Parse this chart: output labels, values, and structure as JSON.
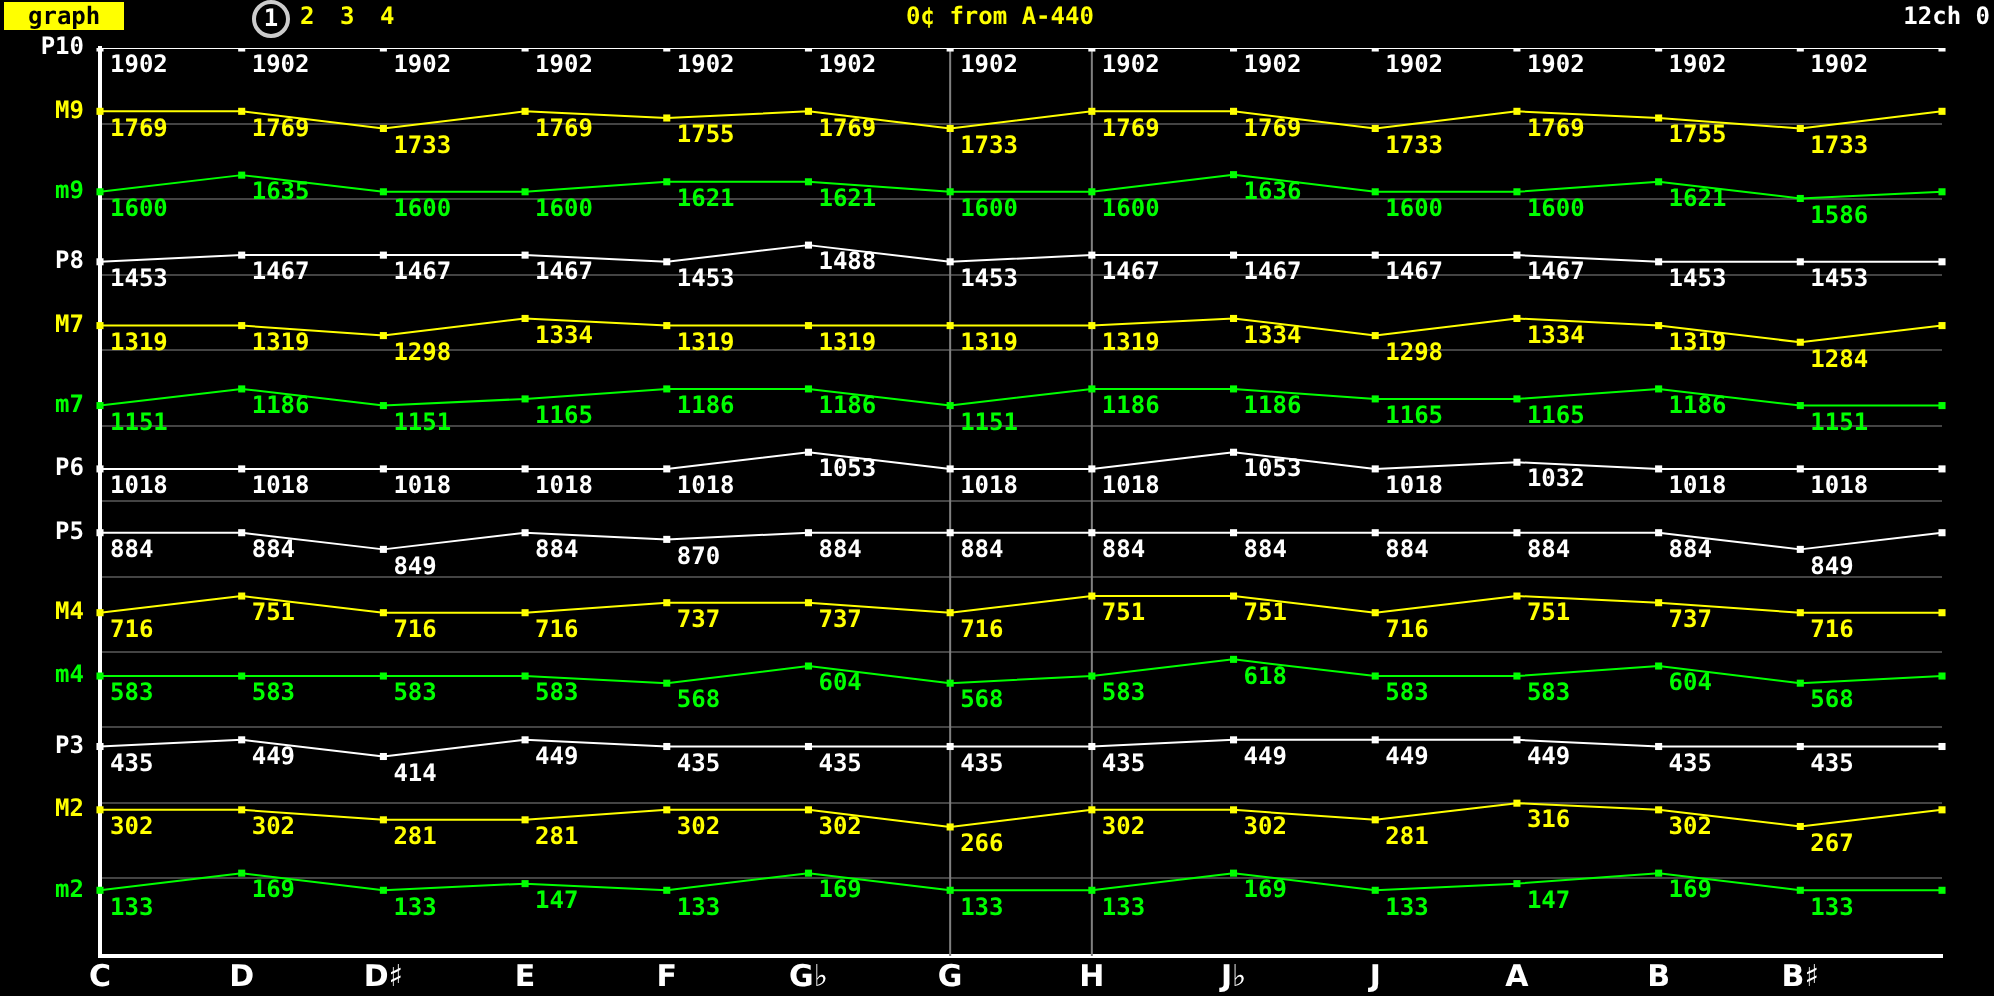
{
  "chart_data": {
    "type": "line",
    "title": "0¢ from A-440",
    "annotations": [
      "graph",
      "1",
      "2",
      "3",
      "4",
      "12ch 0"
    ],
    "categories": [
      "C",
      "D",
      "D♯",
      "E",
      "F",
      "G♭",
      "G",
      "H",
      "J♭",
      "J",
      "A",
      "B",
      "B♯",
      null
    ],
    "series": [
      {
        "name": "P10",
        "color": "#ffffff",
        "values": [
          1902,
          1902,
          1902,
          1902,
          1902,
          1902,
          1902,
          1902,
          1902,
          1902,
          1902,
          1902,
          1902,
          1902
        ],
        "value_labels": [
          "1902",
          "1902",
          "1902",
          "1902",
          "1902",
          "1902",
          "1902",
          "1902",
          "1902",
          "1902",
          "1902",
          "1902",
          "1902",
          null
        ]
      },
      {
        "name": "M9",
        "color": "#ffff00",
        "values": [
          1769,
          1769,
          1733,
          1769,
          1755,
          1769,
          1733,
          1769,
          1769,
          1733,
          1769,
          1755,
          1733,
          1769
        ],
        "value_labels": [
          "1769",
          "1769",
          "1733",
          "1769",
          "1755",
          "1769",
          "1733",
          "1769",
          "1769",
          "1733",
          "1769",
          "1755",
          "1733",
          null
        ]
      },
      {
        "name": "m9",
        "color": "#00ff00",
        "values": [
          1600,
          1635,
          1600,
          1600,
          1621,
          1621,
          1600,
          1600,
          1636,
          1600,
          1600,
          1621,
          1586,
          1600
        ],
        "value_labels": [
          "1600",
          "1635",
          "1600",
          "1600",
          "1621",
          "1621",
          "1600",
          "1600",
          "1636",
          "1600",
          "1600",
          "1621",
          "1586",
          null
        ]
      },
      {
        "name": "P8",
        "color": "#ffffff",
        "values": [
          1453,
          1467,
          1467,
          1467,
          1453,
          1488,
          1453,
          1467,
          1467,
          1467,
          1467,
          1453,
          1453,
          1453
        ],
        "value_labels": [
          "1453",
          "1467",
          "1467",
          "1467",
          "1453",
          "1488",
          "1453",
          "1467",
          "1467",
          "1467",
          "1467",
          "1453",
          "1453",
          null
        ]
      },
      {
        "name": "M7",
        "color": "#ffff00",
        "values": [
          1319,
          1319,
          1298,
          1334,
          1319,
          1319,
          1319,
          1319,
          1334,
          1298,
          1334,
          1319,
          1284,
          1319
        ],
        "value_labels": [
          "1319",
          "1319",
          "1298",
          "1334",
          "1319",
          "1319",
          "1319",
          "1319",
          "1334",
          "1298",
          "1334",
          "1319",
          "1284",
          null
        ]
      },
      {
        "name": "m7",
        "color": "#00ff00",
        "values": [
          1151,
          1186,
          1151,
          1165,
          1186,
          1186,
          1151,
          1186,
          1186,
          1165,
          1165,
          1186,
          1151,
          1151
        ],
        "value_labels": [
          "1151",
          "1186",
          "1151",
          "1165",
          "1186",
          "1186",
          "1151",
          "1186",
          "1186",
          "1165",
          "1165",
          "1186",
          "1151",
          null
        ]
      },
      {
        "name": "P6",
        "color": "#ffffff",
        "values": [
          1018,
          1018,
          1018,
          1018,
          1018,
          1053,
          1018,
          1018,
          1053,
          1018,
          1032,
          1018,
          1018,
          1018
        ],
        "value_labels": [
          "1018",
          "1018",
          "1018",
          "1018",
          "1018",
          "1053",
          "1018",
          "1018",
          "1053",
          "1018",
          "1032",
          "1018",
          "1018",
          null
        ]
      },
      {
        "name": "P5",
        "color": "#ffffff",
        "values": [
          884,
          884,
          849,
          884,
          870,
          884,
          884,
          884,
          884,
          884,
          884,
          884,
          849,
          884
        ],
        "value_labels": [
          "884",
          "884",
          "849",
          "884",
          "870",
          "884",
          "884",
          "884",
          "884",
          "884",
          "884",
          "884",
          "849",
          null
        ]
      },
      {
        "name": "M4",
        "color": "#ffff00",
        "values": [
          716,
          751,
          716,
          716,
          737,
          737,
          716,
          751,
          751,
          716,
          751,
          737,
          716,
          716
        ],
        "value_labels": [
          "716",
          "751",
          "716",
          "716",
          "737",
          "737",
          "716",
          "751",
          "751",
          "716",
          "751",
          "737",
          "716",
          null
        ]
      },
      {
        "name": "m4",
        "color": "#00ff00",
        "values": [
          583,
          583,
          583,
          583,
          568,
          604,
          568,
          583,
          618,
          583,
          583,
          604,
          568,
          583
        ],
        "value_labels": [
          "583",
          "583",
          "583",
          "583",
          "568",
          "604",
          "568",
          "583",
          "618",
          "583",
          "583",
          "604",
          "568",
          null
        ]
      },
      {
        "name": "P3",
        "color": "#ffffff",
        "values": [
          435,
          449,
          414,
          449,
          435,
          435,
          435,
          435,
          449,
          449,
          449,
          435,
          435,
          435
        ],
        "value_labels": [
          "435",
          "449",
          "414",
          "449",
          "435",
          "435",
          "435",
          "435",
          "449",
          "449",
          "449",
          "435",
          "435",
          null
        ]
      },
      {
        "name": "M2",
        "color": "#ffff00",
        "values": [
          302,
          302,
          281,
          281,
          302,
          302,
          266,
          302,
          302,
          281,
          316,
          302,
          267,
          302
        ],
        "value_labels": [
          "302",
          "302",
          "281",
          "281",
          "302",
          "302",
          "266",
          "302",
          "302",
          "281",
          "316",
          "302",
          "267",
          null
        ]
      },
      {
        "name": "m2",
        "color": "#00ff00",
        "values": [
          133,
          169,
          133,
          147,
          133,
          169,
          133,
          133,
          169,
          133,
          147,
          169,
          133,
          133
        ],
        "value_labels": [
          "133",
          "169",
          "133",
          "147",
          "133",
          "169",
          "133",
          "133",
          "169",
          "133",
          "147",
          "169",
          "133",
          null
        ]
      }
    ],
    "ylim": [
      -5,
      1902
    ],
    "yticks": [
      {
        "value": 158,
        "label": null
      },
      {
        "value": 317,
        "label": null
      },
      {
        "value": 475,
        "label": null
      },
      {
        "value": 634,
        "label": null
      },
      {
        "value": 792,
        "label": null
      },
      {
        "value": 951,
        "label": null
      },
      {
        "value": 1109,
        "label": null
      },
      {
        "value": 1268,
        "label": null
      },
      {
        "value": 1426,
        "label": null
      },
      {
        "value": 1585,
        "label": null
      },
      {
        "value": 1743,
        "label": null
      }
    ],
    "ref_lines": [
      {
        "axis": "x",
        "value": "G",
        "color": "#808080"
      },
      {
        "axis": "x",
        "value": "H",
        "color": "#808080"
      }
    ],
    "grid": "y",
    "tick_labels": "x",
    "marker": "square",
    "line_style": "solid",
    "legend": false
  }
}
